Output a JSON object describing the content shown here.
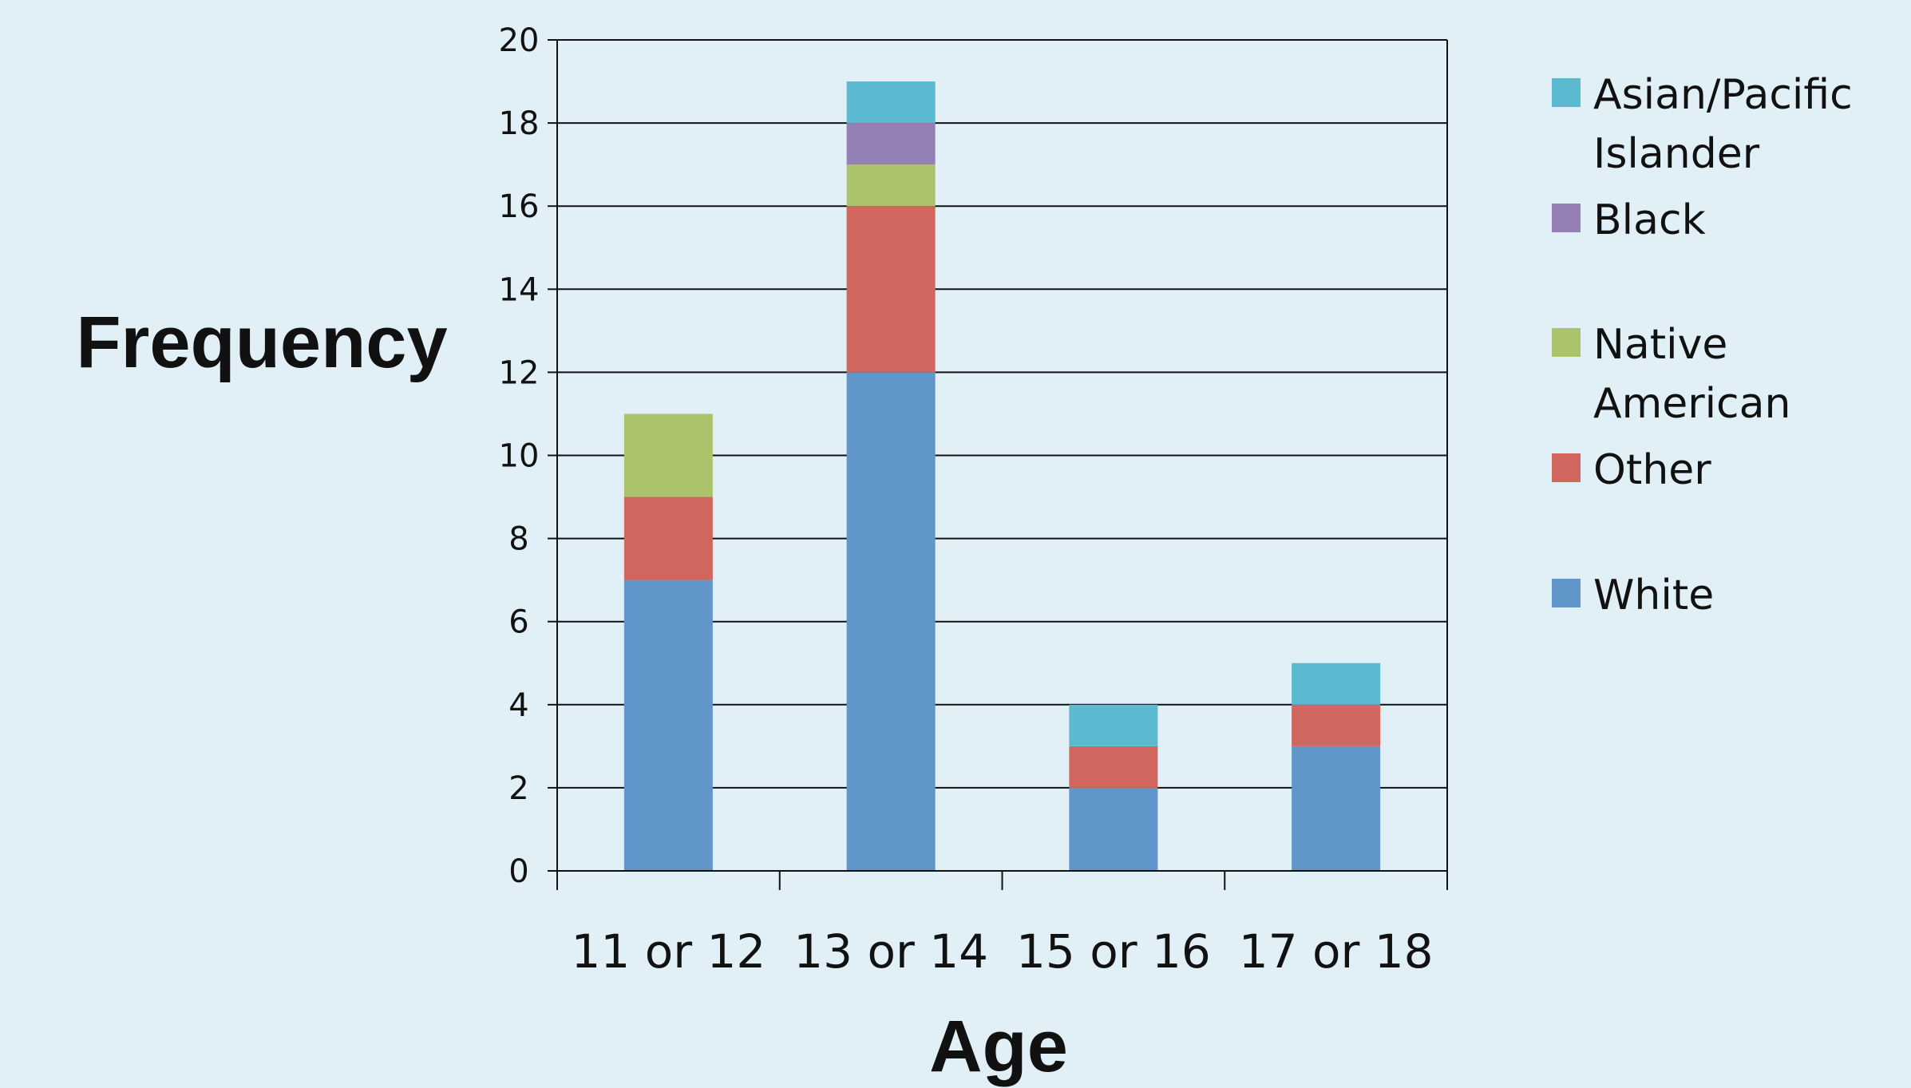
{
  "chart_data": {
    "type": "bar",
    "stacked": true,
    "title": "",
    "xlabel": "Age",
    "ylabel": "Frequency",
    "ylim": [
      0,
      20
    ],
    "ytick_step": 2,
    "yticks": [
      "0",
      "2",
      "4",
      "6",
      "8",
      "10",
      "12",
      "14",
      "16",
      "18",
      "20"
    ],
    "categories": [
      "11 or 12",
      "13 or 14",
      "15 or 16",
      "17 or 18"
    ],
    "grid": true,
    "legend_position": "right",
    "series": [
      {
        "name": "White",
        "color": "#6196cb",
        "values": [
          7,
          12,
          2,
          3
        ]
      },
      {
        "name": "Other",
        "color": "#d0665d",
        "values": [
          2,
          4,
          1,
          1
        ]
      },
      {
        "name": "Native American",
        "color": "#abc46c",
        "values": [
          2,
          1,
          0,
          0
        ]
      },
      {
        "name": "Black",
        "color": "#9480b4",
        "values": [
          0,
          1,
          0,
          0
        ]
      },
      {
        "name": "Asian/Pacific Islander",
        "color": "#5bbad0",
        "values": [
          0,
          1,
          1,
          1
        ]
      }
    ],
    "legend": [
      {
        "lines": [
          "Asian/Pacific",
          "Islander"
        ],
        "color": "#5bbad0"
      },
      {
        "lines": [
          "Black"
        ],
        "color": "#9480b4"
      },
      {
        "lines": [
          "Native",
          "American"
        ],
        "color": "#abc46c"
      },
      {
        "lines": [
          "Other"
        ],
        "color": "#d0665d"
      },
      {
        "lines": [
          "White"
        ],
        "color": "#6196cb"
      }
    ]
  },
  "colors": {
    "background": "#e1f0f7",
    "axis": "#111111",
    "gridline": "#111111"
  }
}
